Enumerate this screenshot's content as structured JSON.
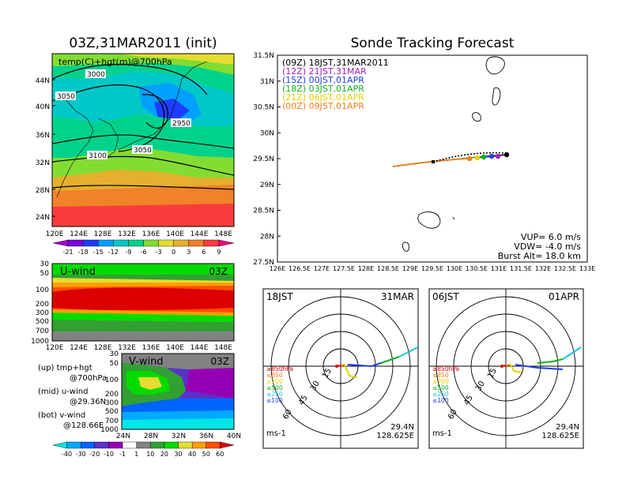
{
  "left_panel": {
    "title": "03Z,31MAR2011 (init)",
    "map_label": "temp(C)+hgt(m)@700hPa",
    "lat_labels": [
      "44N",
      "40N",
      "36N",
      "32N",
      "28N",
      "24N"
    ],
    "lon_labels": [
      "120E",
      "124E",
      "128E",
      "132E",
      "136E",
      "140E",
      "144E",
      "148E"
    ],
    "contour_labels": [
      "3000",
      "3050",
      "2950",
      "3050",
      "3100"
    ],
    "temp_colorbar": [
      "-21",
      "-18",
      "-15",
      "-12",
      "-9",
      "-6",
      "-3",
      "0",
      "3",
      "6",
      "9"
    ]
  },
  "uwind": {
    "label": "U-wind",
    "time": "03Z",
    "pressure_labels": [
      "30",
      "50",
      "100",
      "200",
      "300",
      "500",
      "700",
      "1000"
    ],
    "lon_labels": [
      "120E",
      "124E",
      "128E",
      "132E",
      "136E",
      "140E",
      "144E",
      "148E"
    ]
  },
  "vwind": {
    "label": "V-wind",
    "time": "03Z",
    "pressure_labels": [
      "30",
      "50",
      "100",
      "200",
      "300",
      "500",
      "700",
      "1000"
    ],
    "lat_labels": [
      "24N",
      "28N",
      "32N",
      "36N",
      "40N"
    ]
  },
  "notes": {
    "up_1": "(up) tmp+hgt",
    "up_2": "@700hPa",
    "mid_1": "(mid) u-wind",
    "mid_2": "@29.36N",
    "bot_1": "(bot) v-wind",
    "bot_2": "@128.66E"
  },
  "wind_colorbar": [
    "-40",
    "-30",
    "-20",
    "-10",
    "-1",
    "1",
    "10",
    "20",
    "30",
    "40",
    "50",
    "60"
  ],
  "sonde": {
    "title": "Sonde Tracking Forecast",
    "lat_labels": [
      "31.5N",
      "31N",
      "30.5N",
      "30N",
      "29.5N",
      "29N",
      "28.5N",
      "28N",
      "27.5N"
    ],
    "lon_labels": [
      "126E",
      "126.5E",
      "127E",
      "127.5E",
      "128E",
      "128.5E",
      "129E",
      "129.5E",
      "130E",
      "130.5E",
      "131E",
      "131.5E",
      "132E",
      "132.5E",
      "133E"
    ],
    "legend": [
      {
        "label": "(09Z)  18JST,31MAR2011",
        "color": "#000000"
      },
      {
        "label": "(12Z)  21JST,31MAR",
        "color": "#a020c0"
      },
      {
        "label": "(15Z)  00JST,01APR",
        "color": "#2040e0"
      },
      {
        "label": "(18Z)  03JST,01APR",
        "color": "#10b020"
      },
      {
        "label": "(21Z)  06JST,01APR",
        "color": "#e6d000"
      },
      {
        "label": "(00Z)  09JST,01APR",
        "color": "#f08020"
      }
    ],
    "vup": "VUP=  6.0  m/s",
    "vdw": "VDW= -4.0  m/s",
    "burst": "Burst Alt=  18.0  km"
  },
  "polar_left": {
    "time": "18JST",
    "date": "31MAR",
    "rings": [
      "15",
      "30",
      "45",
      "60"
    ],
    "levels": [
      "≥850hPa",
      "≤850",
      "≤700",
      "≤500",
      "≤250",
      "≤100"
    ],
    "unit": "ms-1",
    "lat": "29.4N",
    "lon": "128.625E"
  },
  "polar_right": {
    "time": "06JST",
    "date": "01APR",
    "rings": [
      "15",
      "30",
      "45",
      "60"
    ],
    "levels": [
      "≥850hPa",
      "≤850",
      "≤700",
      "≤500",
      "≤250",
      "≤100"
    ],
    "unit": "ms-1",
    "lat": "29.4N",
    "lon": "128.625E"
  },
  "colors": {
    "temp_scale": [
      "#a000c8",
      "#7d00dc",
      "#1e3cff",
      "#00a0ff",
      "#00c8c8",
      "#00d28c",
      "#82dc32",
      "#e6dc32",
      "#e6af2d",
      "#f08228",
      "#fa3c3c",
      "#f00082"
    ],
    "wind_scale": [
      "#00e6e6",
      "#00aaff",
      "#0064ff",
      "#5a32c8",
      "#9600b4",
      "#ffffff",
      "#828282",
      "#32a032",
      "#00dc00",
      "#e6dc32",
      "#ffa000",
      "#ff5000",
      "#dc0000"
    ]
  }
}
